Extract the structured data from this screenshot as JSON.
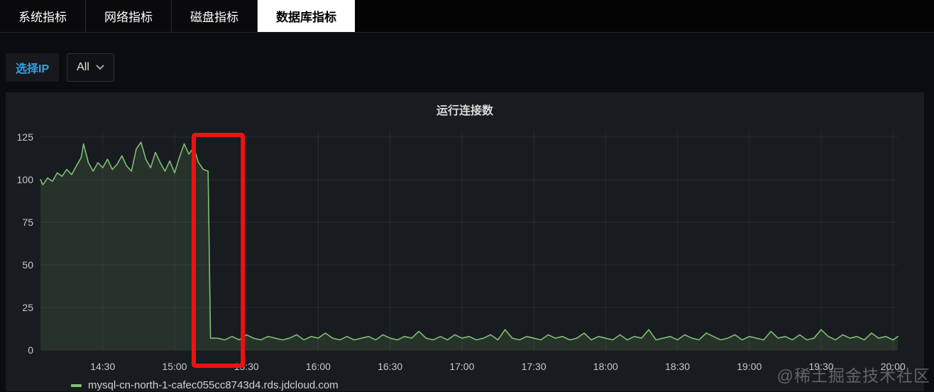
{
  "tabs": {
    "items": [
      {
        "label": "系统指标",
        "active": false
      },
      {
        "label": "网络指标",
        "active": false
      },
      {
        "label": "磁盘指标",
        "active": false
      },
      {
        "label": "数据库指标",
        "active": true
      }
    ]
  },
  "filters": {
    "select_ip_label": "选择IP",
    "ip_dropdown_value": "All"
  },
  "panel": {
    "title": "运行连接数"
  },
  "legend": {
    "series_label": "mysql-cn-north-1-cafec055cc8743d4.rds.jdcloud.com"
  },
  "watermark": "@稀土掘金技术社区",
  "colors": {
    "accent_blue": "#33a2e5",
    "series_green": "#7fbf75",
    "annotation_red": "#ee1111",
    "panel_bg": "#181b1f",
    "page_bg": "#0b0c0f"
  },
  "chart_data": {
    "type": "line",
    "title": "运行连接数",
    "xlabel": "",
    "ylabel": "",
    "ylim": [
      0,
      125
    ],
    "x_range_min": [
      844,
      1202
    ],
    "grid": true,
    "grid_color": "rgba(204,204,220,0.09)",
    "tick_color": "#c7c8ca",
    "legend_position": "bottom-left",
    "y_ticks": [
      0,
      25,
      50,
      75,
      100,
      125
    ],
    "x_ticks": [
      {
        "t": 870,
        "label": "14:30"
      },
      {
        "t": 900,
        "label": "15:00"
      },
      {
        "t": 930,
        "label": "15:30"
      },
      {
        "t": 960,
        "label": "16:00"
      },
      {
        "t": 990,
        "label": "16:30"
      },
      {
        "t": 1020,
        "label": "17:00"
      },
      {
        "t": 1050,
        "label": "17:30"
      },
      {
        "t": 1080,
        "label": "18:00"
      },
      {
        "t": 1110,
        "label": "18:30"
      },
      {
        "t": 1140,
        "label": "19:00"
      },
      {
        "t": 1170,
        "label": "19:30"
      },
      {
        "t": 1200,
        "label": "20:00"
      }
    ],
    "series": [
      {
        "name": "mysql-cn-north-1-cafec055cc8743d4.rds.jdcloud.com",
        "color": "#7fbf75",
        "fill_color": "rgba(127,191,117,0.15)",
        "points": [
          [
            844,
            100
          ],
          [
            845,
            97
          ],
          [
            847,
            101
          ],
          [
            849,
            99
          ],
          [
            851,
            104
          ],
          [
            853,
            102
          ],
          [
            855,
            106
          ],
          [
            857,
            103
          ],
          [
            859,
            108
          ],
          [
            861,
            113
          ],
          [
            862,
            121
          ],
          [
            864,
            110
          ],
          [
            866,
            105
          ],
          [
            868,
            110
          ],
          [
            870,
            107
          ],
          [
            872,
            112
          ],
          [
            874,
            106
          ],
          [
            876,
            109
          ],
          [
            878,
            114
          ],
          [
            880,
            108
          ],
          [
            882,
            105
          ],
          [
            884,
            118
          ],
          [
            886,
            122
          ],
          [
            888,
            112
          ],
          [
            890,
            107
          ],
          [
            892,
            116
          ],
          [
            894,
            110
          ],
          [
            896,
            105
          ],
          [
            898,
            111
          ],
          [
            900,
            104
          ],
          [
            902,
            113
          ],
          [
            904,
            121
          ],
          [
            906,
            115
          ],
          [
            908,
            119
          ],
          [
            910,
            110
          ],
          [
            912,
            106
          ],
          [
            914,
            105
          ],
          [
            915,
            7
          ],
          [
            918,
            7
          ],
          [
            921,
            6
          ],
          [
            924,
            8
          ],
          [
            927,
            6
          ],
          [
            930,
            9
          ],
          [
            933,
            7
          ],
          [
            936,
            6
          ],
          [
            939,
            8
          ],
          [
            942,
            7
          ],
          [
            945,
            6
          ],
          [
            948,
            7
          ],
          [
            951,
            9
          ],
          [
            954,
            6
          ],
          [
            957,
            8
          ],
          [
            960,
            7
          ],
          [
            963,
            10
          ],
          [
            966,
            7
          ],
          [
            969,
            6
          ],
          [
            972,
            8
          ],
          [
            975,
            6
          ],
          [
            978,
            7
          ],
          [
            981,
            8
          ],
          [
            984,
            6
          ],
          [
            987,
            9
          ],
          [
            990,
            7
          ],
          [
            993,
            6
          ],
          [
            996,
            8
          ],
          [
            999,
            7
          ],
          [
            1002,
            11
          ],
          [
            1005,
            7
          ],
          [
            1008,
            6
          ],
          [
            1011,
            8
          ],
          [
            1014,
            6
          ],
          [
            1017,
            9
          ],
          [
            1020,
            7
          ],
          [
            1023,
            8
          ],
          [
            1026,
            6
          ],
          [
            1029,
            7
          ],
          [
            1032,
            9
          ],
          [
            1035,
            6
          ],
          [
            1038,
            12
          ],
          [
            1041,
            7
          ],
          [
            1044,
            6
          ],
          [
            1047,
            8
          ],
          [
            1050,
            7
          ],
          [
            1053,
            6
          ],
          [
            1056,
            9
          ],
          [
            1059,
            7
          ],
          [
            1062,
            8
          ],
          [
            1065,
            6
          ],
          [
            1068,
            7
          ],
          [
            1071,
            10
          ],
          [
            1074,
            6
          ],
          [
            1077,
            8
          ],
          [
            1080,
            7
          ],
          [
            1083,
            6
          ],
          [
            1086,
            9
          ],
          [
            1089,
            6
          ],
          [
            1092,
            8
          ],
          [
            1095,
            7
          ],
          [
            1098,
            12
          ],
          [
            1101,
            6
          ],
          [
            1104,
            7
          ],
          [
            1107,
            8
          ],
          [
            1110,
            6
          ],
          [
            1113,
            9
          ],
          [
            1116,
            7
          ],
          [
            1119,
            6
          ],
          [
            1122,
            10
          ],
          [
            1125,
            8
          ],
          [
            1128,
            6
          ],
          [
            1131,
            7
          ],
          [
            1134,
            9
          ],
          [
            1137,
            6
          ],
          [
            1140,
            8
          ],
          [
            1143,
            7
          ],
          [
            1146,
            6
          ],
          [
            1149,
            11
          ],
          [
            1152,
            7
          ],
          [
            1155,
            8
          ],
          [
            1158,
            6
          ],
          [
            1161,
            9
          ],
          [
            1164,
            6
          ],
          [
            1167,
            7
          ],
          [
            1170,
            12
          ],
          [
            1173,
            8
          ],
          [
            1176,
            6
          ],
          [
            1179,
            9
          ],
          [
            1182,
            7
          ],
          [
            1185,
            8
          ],
          [
            1188,
            6
          ],
          [
            1191,
            10
          ],
          [
            1194,
            7
          ],
          [
            1197,
            8
          ],
          [
            1200,
            6
          ],
          [
            1202,
            8
          ]
        ]
      }
    ],
    "annotations": [
      {
        "type": "rect",
        "time_start_min": 908,
        "time_end_min": 928.5,
        "color": "#ee1111",
        "note": "highlight of sudden connection drop around 15:10-15:25"
      }
    ]
  }
}
